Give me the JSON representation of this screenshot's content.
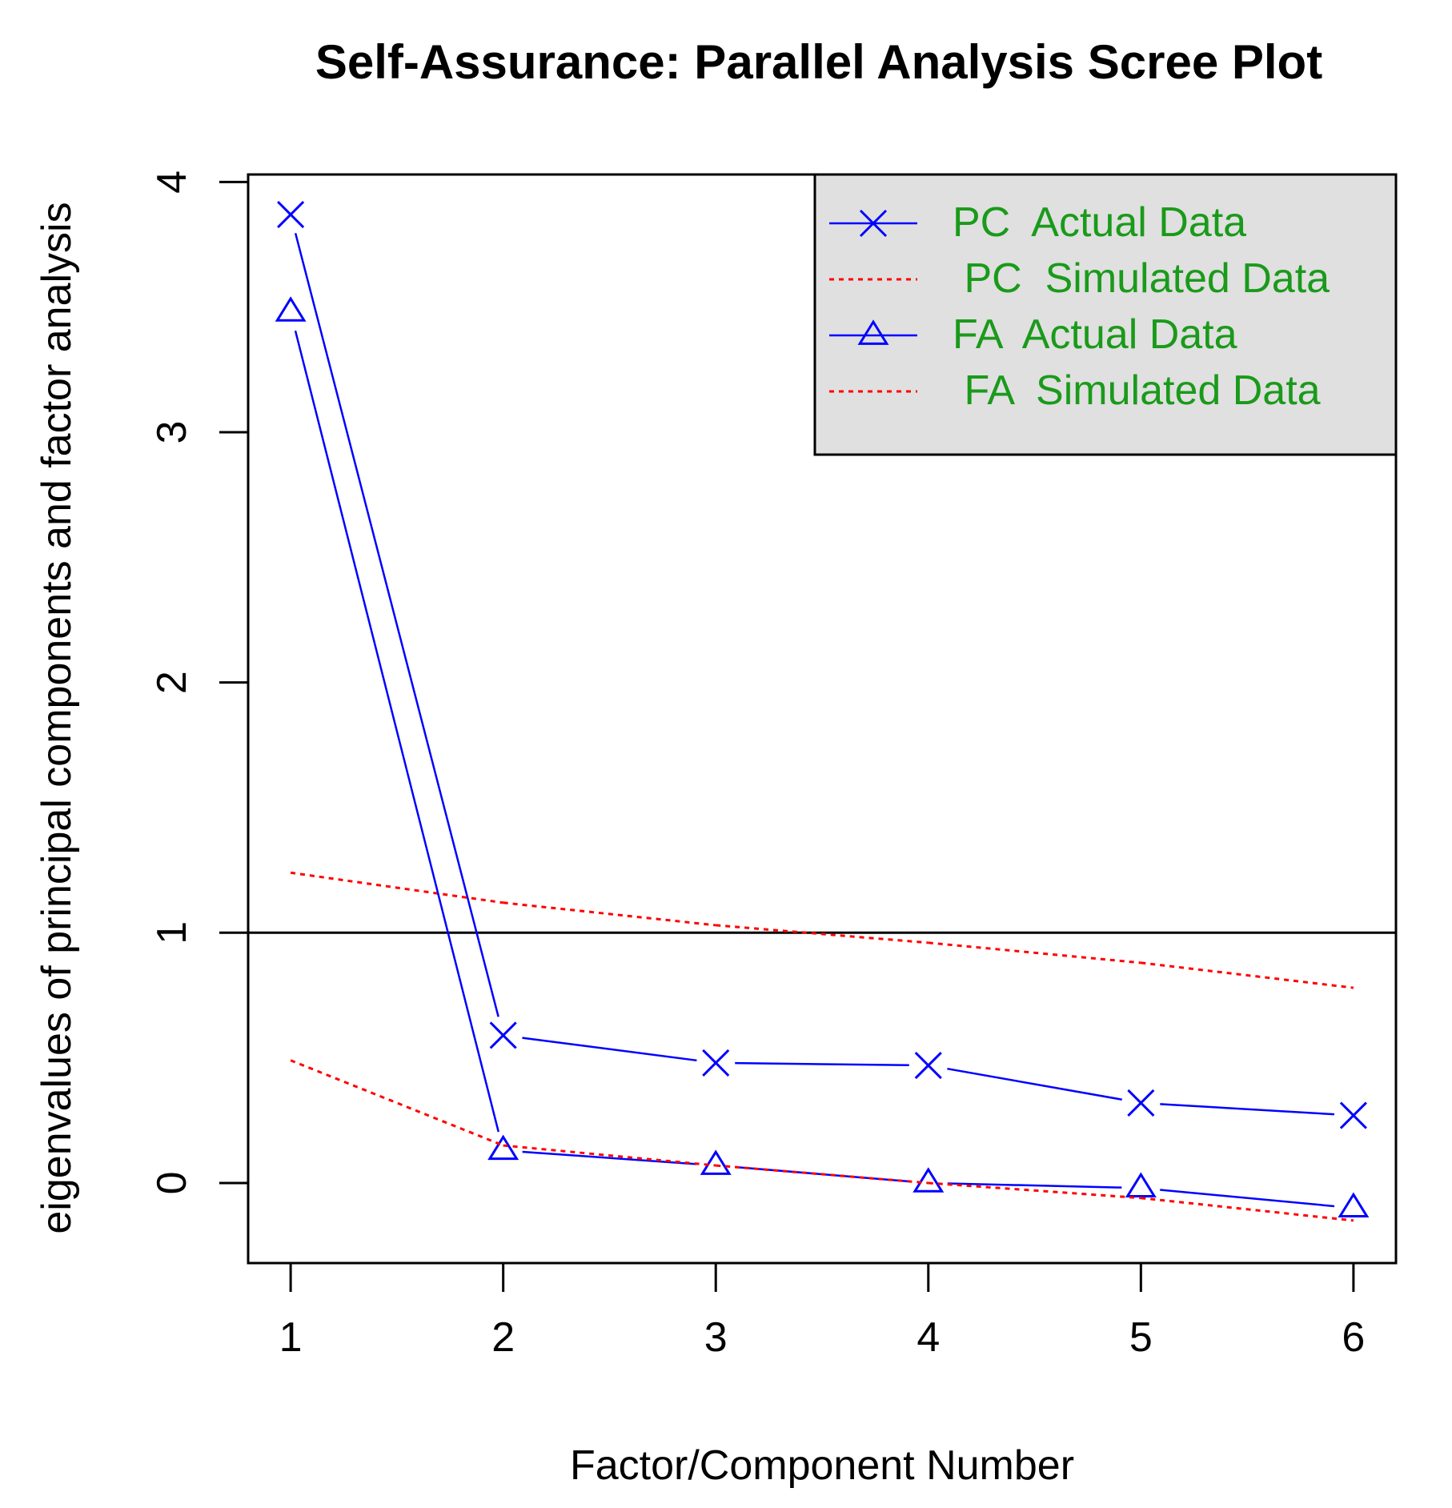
{
  "chart_data": {
    "type": "line",
    "title": "Self-Assurance: Parallel Analysis Scree Plot",
    "xlabel": "Factor/Component Number",
    "ylabel": "eigenvalues of principal components and factor analysis",
    "x": [
      1,
      2,
      3,
      4,
      5,
      6
    ],
    "x_ticks": [
      "1",
      "2",
      "3",
      "4",
      "5",
      "6"
    ],
    "y_ticks": [
      "0",
      "1",
      "2",
      "3",
      "4"
    ],
    "xlim": [
      0.8,
      6.2
    ],
    "ylim": [
      -0.32,
      4.03
    ],
    "reference_line": 1,
    "grid": false,
    "legend_position": "top-right",
    "legend_background": "#e0e0e0",
    "legend_text_color": "#1a9a1a",
    "series": [
      {
        "name": "PC  Actual Data",
        "legend_label": "PC  Actual Data",
        "values": [
          3.87,
          0.59,
          0.48,
          0.47,
          0.32,
          0.27
        ],
        "color": "#0000ff",
        "line": "solid",
        "marker": "cross"
      },
      {
        "name": " PC  Simulated Data",
        "legend_label": " PC  Simulated Data",
        "values": [
          1.24,
          1.12,
          1.03,
          0.96,
          0.88,
          0.78
        ],
        "color": "#ff0000",
        "line": "dotted",
        "marker": "none"
      },
      {
        "name": "FA  Actual Data",
        "legend_label": "FA  Actual Data",
        "values": [
          3.48,
          0.13,
          0.07,
          0.0,
          -0.02,
          -0.1
        ],
        "color": "#0000ff",
        "line": "solid",
        "marker": "triangle"
      },
      {
        "name": " FA  Simulated Data",
        "legend_label": " FA  Simulated Data",
        "values": [
          0.49,
          0.15,
          0.07,
          0.0,
          -0.06,
          -0.15
        ],
        "color": "#ff0000",
        "line": "dotted",
        "marker": "none"
      }
    ]
  }
}
